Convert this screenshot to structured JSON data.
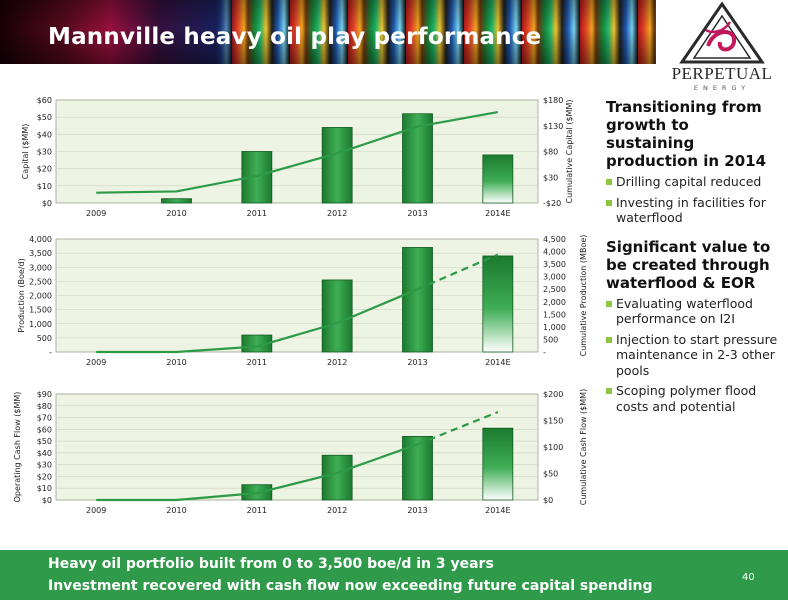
{
  "header": {
    "title": "Mannville heavy oil play performance"
  },
  "logo": {
    "name": "PERPETUAL",
    "sub": "ENERGY",
    "icon": "triangle-swirl-logo-icon"
  },
  "colors": {
    "bar_dark": "#1b7a2e",
    "bar_light": "#3fae55",
    "line": "#2c9a46",
    "plot_bg": "#eef4e4",
    "footer": "#2e9a4a",
    "bullet": "#8dc63f"
  },
  "chart_data": [
    {
      "type": "bar",
      "categories": [
        "2009",
        "2010",
        "2011",
        "2012",
        "2013",
        "2014E"
      ],
      "values": [
        0,
        2.5,
        30,
        44,
        52,
        28
      ],
      "ylabel": "Capital ($MM)",
      "ylim": [
        0,
        60
      ],
      "yticks": [
        "$0",
        "$10",
        "$20",
        "$30",
        "$40",
        "$50",
        "$60"
      ],
      "y2label": "Cumulative Capital ($MM)",
      "y2lim": [
        -20,
        180
      ],
      "y2ticks": [
        "-$20",
        "$30",
        "$80",
        "$130",
        "$180"
      ],
      "line_values": [
        0,
        2.5,
        32.5,
        76.5,
        128.5,
        156.5
      ],
      "forecast_from_index": 5,
      "grid": true
    },
    {
      "type": "bar",
      "categories": [
        "2009",
        "2010",
        "2011",
        "2012",
        "2013",
        "2014E"
      ],
      "values": [
        0,
        0,
        600,
        2550,
        3700,
        3400
      ],
      "ylabel": "Production (Boe/d)",
      "ylim": [
        0,
        4000
      ],
      "yticks": [
        "-",
        "500",
        "1,000",
        "1,500",
        "2,000",
        "2,500",
        "3,000",
        "3,500",
        "4,000"
      ],
      "y2label": "Cumulative Production (MBoe)",
      "y2lim": [
        0,
        4500
      ],
      "y2ticks": [
        "-",
        "500",
        "1,000",
        "1,500",
        "2,000",
        "2,500",
        "3,000",
        "3,500",
        "4,000",
        "4,500"
      ],
      "line_values": [
        0,
        0,
        220,
        1150,
        2500,
        3880
      ],
      "forecast_from_index": 4,
      "grid": true
    },
    {
      "type": "bar",
      "categories": [
        "2009",
        "2010",
        "2011",
        "2012",
        "2013",
        "2014E"
      ],
      "values": [
        0,
        0,
        13,
        38,
        54,
        61
      ],
      "ylabel": "Operating Cash Flow ($MM)",
      "ylim": [
        0,
        90
      ],
      "yticks": [
        "$0",
        "$10",
        "$20",
        "$30",
        "$40",
        "$50",
        "$60",
        "$70",
        "$80",
        "$90"
      ],
      "y2label": "Cumulative Cash Flow ($MM)",
      "y2lim": [
        0,
        200
      ],
      "y2ticks": [
        "$0",
        "$50",
        "$100",
        "$150",
        "$200"
      ],
      "line_values": [
        0,
        0,
        13,
        51,
        105,
        166
      ],
      "forecast_from_index": 4,
      "grid": true
    }
  ],
  "right_panel": {
    "heading1": "Transitioning from growth to sustaining production in 2014",
    "bullets1": [
      "Drilling capital reduced",
      "Investing in facilities for waterflood"
    ],
    "heading2": "Significant value to be created through waterflood & EOR",
    "bullets2": [
      "Evaluating waterflood performance on I2I",
      "Injection to start pressure maintenance in 2-3 other pools",
      "Scoping polymer flood costs and potential"
    ]
  },
  "footer": {
    "line1": "Heavy oil portfolio built from 0 to 3,500 boe/d in 3 years",
    "line2": "Investment recovered with cash flow now exceeding future capital spending",
    "page_number": "40"
  }
}
